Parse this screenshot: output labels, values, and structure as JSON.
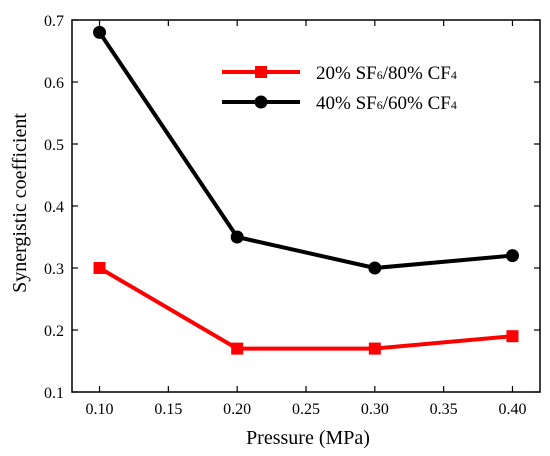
{
  "chart_data": {
    "type": "line",
    "xlabel": "Pressure (MPa)",
    "ylabel": "Synergistic coefficient",
    "xlim": [
      0.08,
      0.42
    ],
    "ylim": [
      0.1,
      0.7
    ],
    "xticks": [
      0.1,
      0.15,
      0.2,
      0.25,
      0.3,
      0.35,
      0.4
    ],
    "xtick_labels": [
      "0.10",
      "0.15",
      "0.20",
      "0.25",
      "0.30",
      "0.35",
      "0.40"
    ],
    "yticks": [
      0.1,
      0.2,
      0.3,
      0.4,
      0.5,
      0.6,
      0.7
    ],
    "ytick_labels": [
      "0.1",
      "0.2",
      "0.3",
      "0.4",
      "0.5",
      "0.6",
      "0.7"
    ],
    "grid": false,
    "legend_position": "top-right",
    "x": [
      0.1,
      0.2,
      0.3,
      0.4
    ],
    "series": [
      {
        "legend": [
          {
            "t": "20% SF"
          },
          {
            "t": "6",
            "sub": true
          },
          {
            "t": "/80% CF"
          },
          {
            "t": "4",
            "sub": true
          }
        ],
        "values": [
          0.3,
          0.17,
          0.17,
          0.19
        ],
        "color": "#ff0000",
        "marker": "square"
      },
      {
        "legend": [
          {
            "t": "40% SF"
          },
          {
            "t": "6",
            "sub": true
          },
          {
            "t": "/60% CF"
          },
          {
            "t": "4",
            "sub": true
          }
        ],
        "values": [
          0.68,
          0.35,
          0.3,
          0.32
        ],
        "color": "#000000",
        "marker": "circle"
      }
    ]
  }
}
